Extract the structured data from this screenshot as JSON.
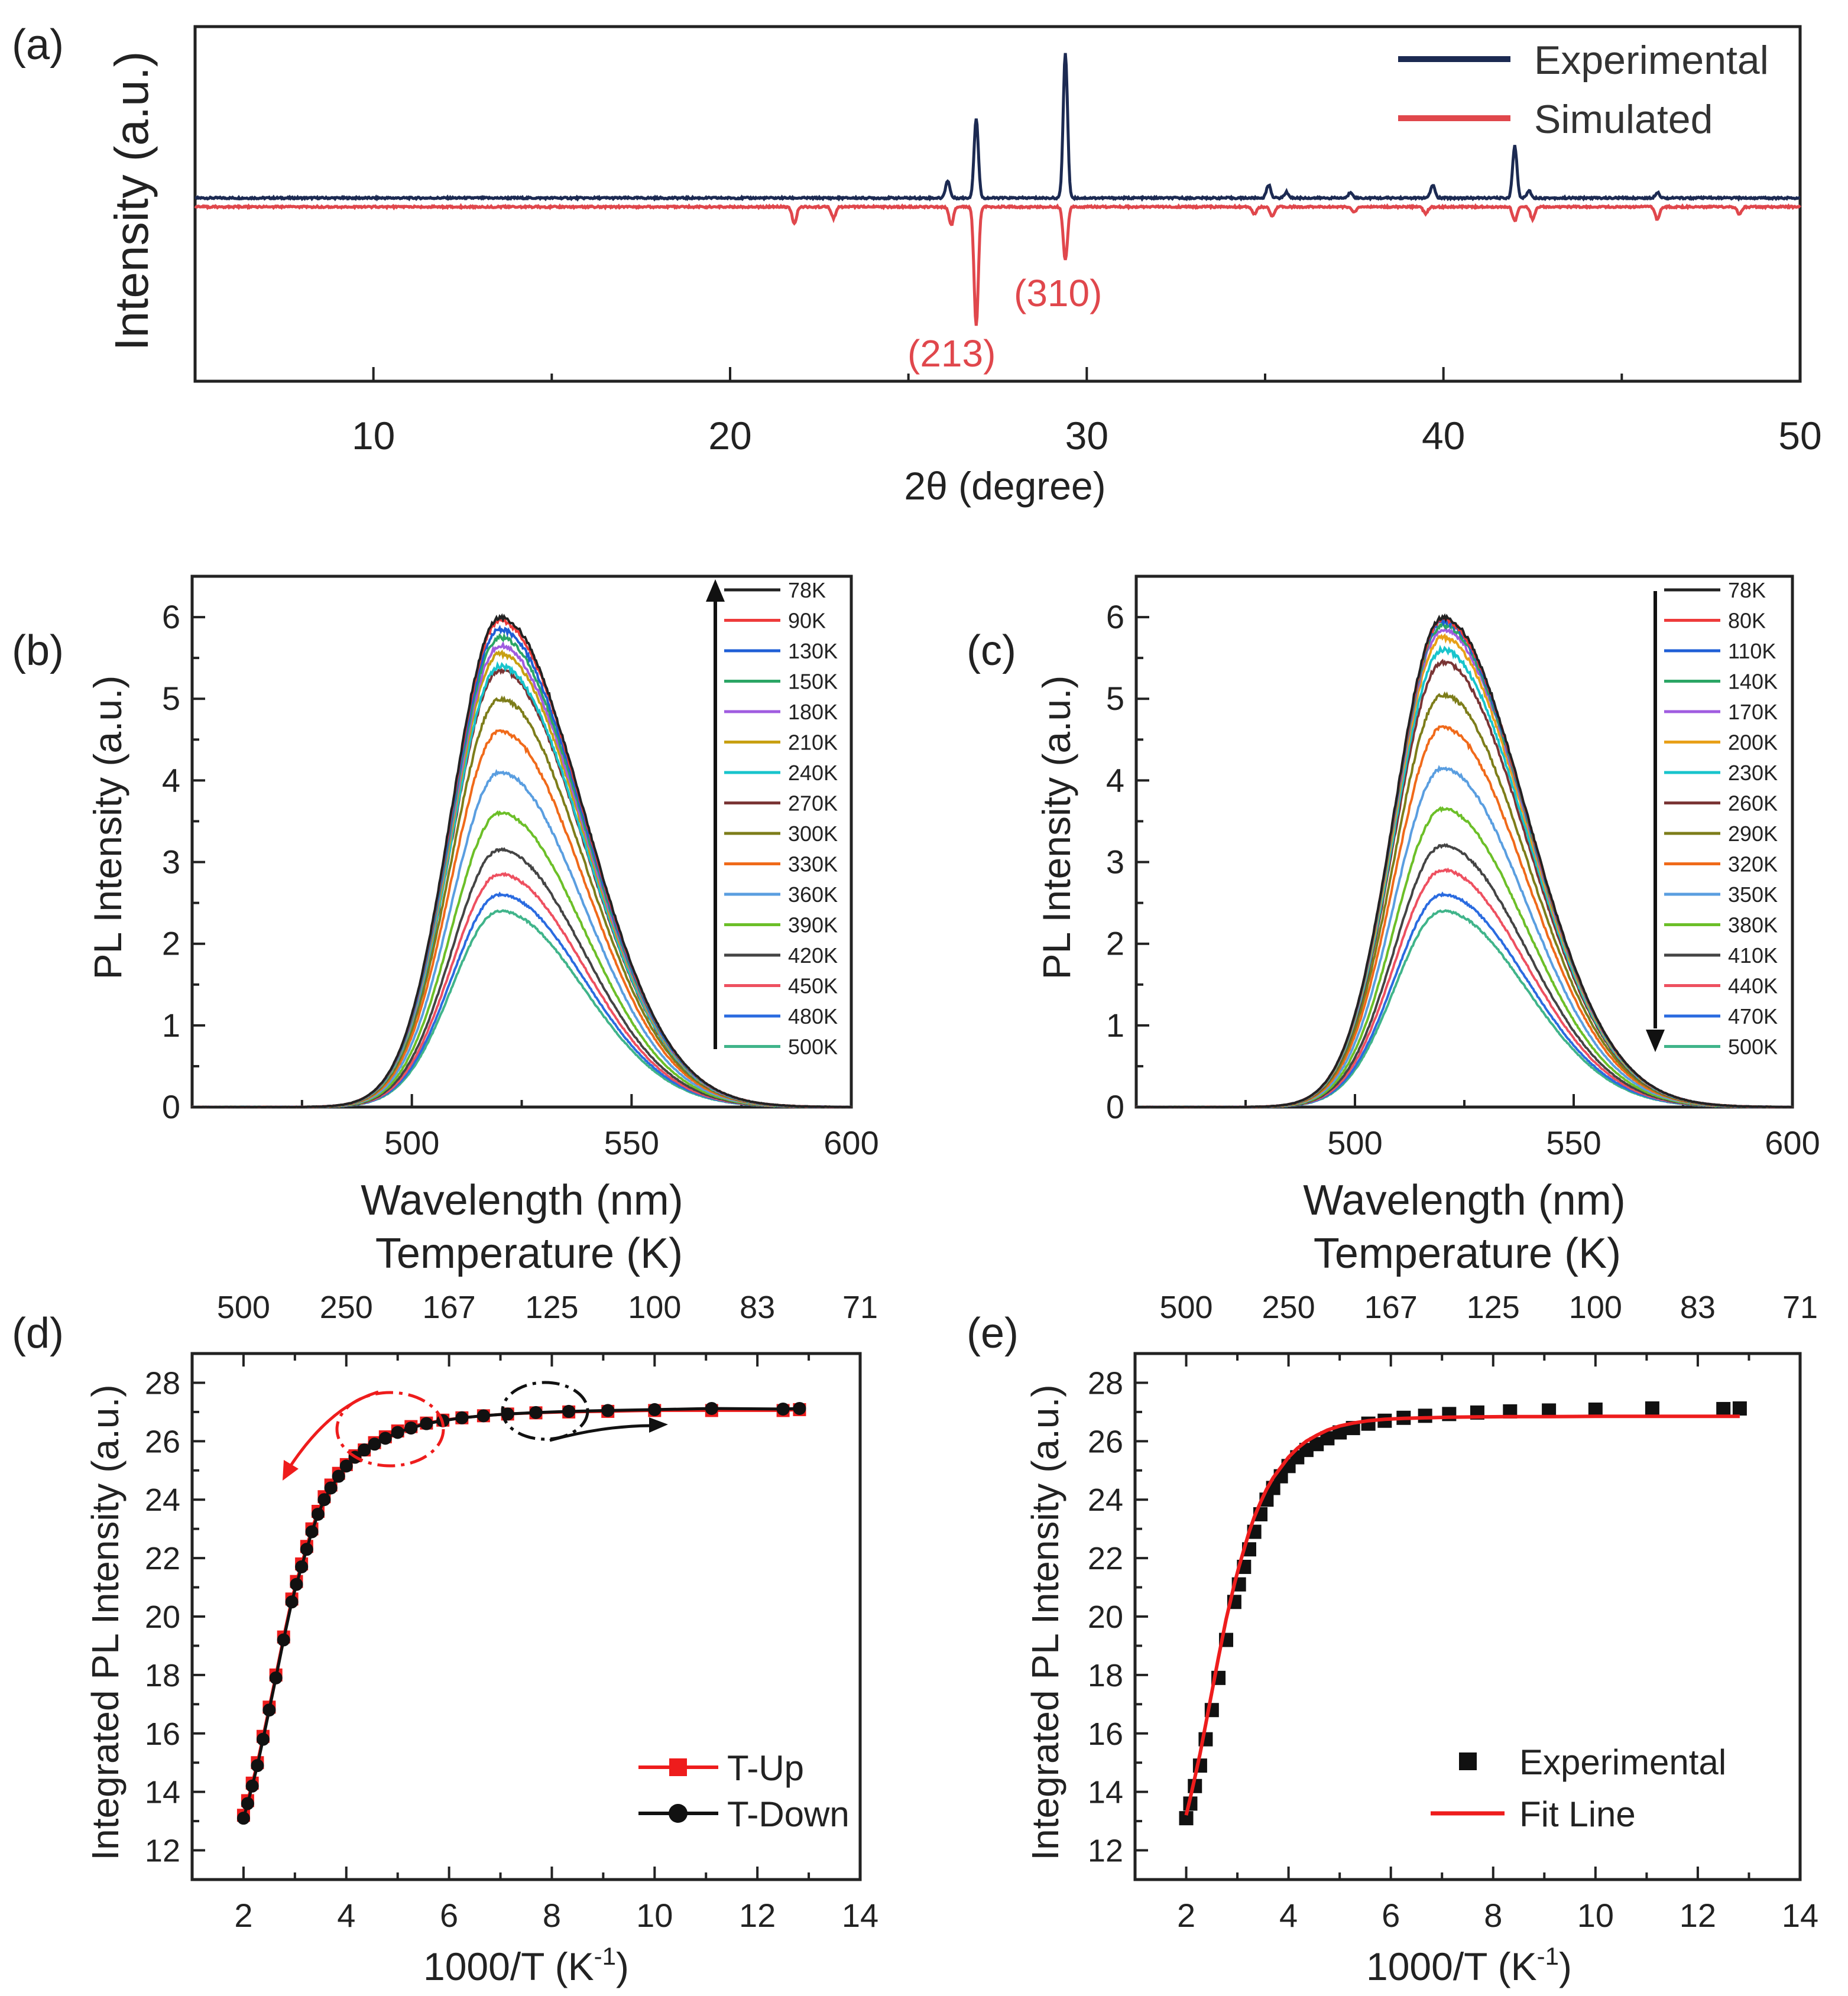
{
  "colors": {
    "experimental_xrd": "#1c2a52",
    "simulated_xrd": "#e0474c",
    "t_up": "#ee1c1c",
    "t_down": "#111111",
    "fit": "#ee1c1c",
    "experimental_marker": "#111111",
    "legend_temps": [
      "#222222",
      "#ee3b3b",
      "#1f5fd6",
      "#2ba665",
      "#a05ce0",
      "#c8a012",
      "#18c4cc",
      "#7a3535",
      "#7d7d1a",
      "#f06a1a",
      "#5a9ee0",
      "#6cbf28",
      "#444444",
      "#ee5060",
      "#2a6be0",
      "#40b48a"
    ],
    "legend_temps_c": [
      "#222222",
      "#ee3b3b",
      "#1f5fd6",
      "#2ba665",
      "#a05ce0",
      "#e8a018",
      "#18c4cc",
      "#7a3535",
      "#7d7d1a",
      "#f06a1a",
      "#5a9ee0",
      "#6cbf28",
      "#444444",
      "#ee5060",
      "#2a6be0",
      "#40b48a"
    ]
  },
  "chart_data": [
    {
      "panel": "(a)",
      "type": "line",
      "xlabel": "2θ (degree)",
      "ylabel": "Intensity (a.u.)",
      "xlim": [
        5,
        50
      ],
      "xticks": [
        10,
        20,
        30,
        40,
        50
      ],
      "legend": [
        "Experimental",
        "Simulated"
      ],
      "legend_position": "top-right",
      "series": [
        {
          "name": "Experimental",
          "peaks": [
            [
              26.1,
              0.12
            ],
            [
              26.9,
              0.55
            ],
            [
              29.4,
              1.0
            ],
            [
              35.1,
              0.09
            ],
            [
              35.6,
              0.04
            ],
            [
              37.4,
              0.04
            ],
            [
              39.7,
              0.09
            ],
            [
              42.0,
              0.36
            ],
            [
              42.4,
              0.05
            ],
            [
              46.0,
              0.04
            ]
          ]
        },
        {
          "name": "Simulated",
          "peaks": [
            [
              21.8,
              0.12
            ],
            [
              22.9,
              0.08
            ],
            [
              26.2,
              0.13
            ],
            [
              26.9,
              0.85
            ],
            [
              29.4,
              0.38
            ],
            [
              34.7,
              0.05
            ],
            [
              35.2,
              0.07
            ],
            [
              37.5,
              0.04
            ],
            [
              39.5,
              0.05
            ],
            [
              42.0,
              0.1
            ],
            [
              42.5,
              0.09
            ],
            [
              46.0,
              0.09
            ],
            [
              48.3,
              0.05
            ]
          ]
        }
      ],
      "annotations": [
        "(213)",
        "(310)"
      ]
    },
    {
      "panel": "(b)",
      "type": "line",
      "xlabel": "Wavelength (nm)",
      "ylabel": "PL Intensity (a.u.)",
      "xlim": [
        450,
        600
      ],
      "ylim": [
        0,
        6.5
      ],
      "xticks": [
        500,
        550,
        600
      ],
      "yticks": [
        0,
        1,
        2,
        3,
        4,
        5,
        6
      ],
      "peak_wavelength": 520,
      "legend": [
        "78K",
        "90K",
        "130K",
        "150K",
        "180K",
        "210K",
        "240K",
        "270K",
        "300K",
        "330K",
        "360K",
        "390K",
        "420K",
        "450K",
        "480K",
        "500K"
      ],
      "peak_values": [
        6.0,
        5.95,
        5.85,
        5.75,
        5.65,
        5.55,
        5.4,
        5.35,
        5.0,
        4.6,
        4.1,
        3.6,
        3.15,
        2.85,
        2.6,
        2.4
      ],
      "arrow": "up"
    },
    {
      "panel": "(c)",
      "type": "line",
      "xlabel": "Wavelength (nm)",
      "ylabel": "PL Intensity (a.u.)",
      "xlim": [
        450,
        600
      ],
      "ylim": [
        0,
        6.5
      ],
      "xticks": [
        500,
        550,
        600
      ],
      "yticks": [
        0,
        1,
        2,
        3,
        4,
        5,
        6
      ],
      "peak_wavelength": 520,
      "legend": [
        "78K",
        "80K",
        "110K",
        "140K",
        "170K",
        "200K",
        "230K",
        "260K",
        "290K",
        "320K",
        "350K",
        "380K",
        "410K",
        "440K",
        "470K",
        "500K"
      ],
      "peak_values": [
        6.0,
        5.97,
        5.95,
        5.9,
        5.85,
        5.75,
        5.6,
        5.45,
        5.05,
        4.65,
        4.15,
        3.65,
        3.2,
        2.9,
        2.6,
        2.4
      ],
      "arrow": "down"
    },
    {
      "panel": "(d)",
      "type": "scatter",
      "xlabel": "1000/T (K",
      "xlabel_sup": "-1",
      "xlabel_end": ")",
      "ylabel": "Integrated PL Intensity (a.u.)",
      "top_label": "Temperature (K)",
      "xlim": [
        1,
        14
      ],
      "ylim": [
        11,
        29
      ],
      "xticks": [
        2,
        4,
        6,
        8,
        10,
        12,
        14
      ],
      "yticks": [
        12,
        14,
        16,
        18,
        20,
        22,
        24,
        26,
        28
      ],
      "top_ticks": [
        "500",
        "250",
        "167",
        "125",
        "100",
        "83",
        "71"
      ],
      "legend": [
        "T-Up",
        "T-Down"
      ],
      "legend_position": "bottom-right",
      "x": [
        2.0,
        2.08,
        2.17,
        2.27,
        2.38,
        2.5,
        2.63,
        2.78,
        2.94,
        3.03,
        3.13,
        3.23,
        3.33,
        3.45,
        3.57,
        3.7,
        3.85,
        4.0,
        4.17,
        4.35,
        4.55,
        4.76,
        5.0,
        5.26,
        5.56,
        5.88,
        6.25,
        6.67,
        7.14,
        7.69,
        8.33,
        9.09,
        10.0,
        11.11,
        12.5,
        12.82
      ],
      "series": [
        {
          "name": "T-Up",
          "values": [
            13.2,
            13.7,
            14.3,
            15.0,
            15.9,
            16.9,
            18.0,
            19.3,
            20.6,
            21.2,
            21.8,
            22.4,
            23.0,
            23.6,
            24.1,
            24.5,
            24.9,
            25.2,
            25.5,
            25.7,
            25.95,
            26.15,
            26.35,
            26.5,
            26.62,
            26.72,
            26.8,
            26.87,
            26.93,
            26.97,
            27.0,
            27.02,
            27.05,
            27.05,
            27.05,
            27.08
          ]
        },
        {
          "name": "T-Down",
          "values": [
            13.1,
            13.6,
            14.2,
            14.9,
            15.8,
            16.8,
            17.9,
            19.2,
            20.5,
            21.1,
            21.7,
            22.3,
            22.9,
            23.5,
            24.0,
            24.4,
            24.8,
            25.15,
            25.45,
            25.7,
            25.9,
            26.1,
            26.3,
            26.45,
            26.6,
            26.7,
            26.8,
            26.87,
            26.93,
            26.98,
            27.02,
            27.05,
            27.08,
            27.12,
            27.1,
            27.12
          ]
        }
      ]
    },
    {
      "panel": "(e)",
      "type": "scatter",
      "xlabel": "1000/T (K",
      "xlabel_sup": "-1",
      "xlabel_end": ")",
      "ylabel": "Integrated PL Intensity (a.u.)",
      "top_label": "Temperature (K)",
      "xlim": [
        1,
        14
      ],
      "ylim": [
        11,
        29
      ],
      "xticks": [
        2,
        4,
        6,
        8,
        10,
        12,
        14
      ],
      "yticks": [
        12,
        14,
        16,
        18,
        20,
        22,
        24,
        26,
        28
      ],
      "top_ticks": [
        "500",
        "250",
        "167",
        "125",
        "100",
        "83",
        "71"
      ],
      "legend": [
        "Experimental",
        "Fit Line"
      ],
      "legend_position": "bottom-right",
      "x": [
        2.0,
        2.08,
        2.17,
        2.27,
        2.38,
        2.5,
        2.63,
        2.78,
        2.94,
        3.03,
        3.13,
        3.23,
        3.33,
        3.45,
        3.57,
        3.7,
        3.85,
        4.0,
        4.17,
        4.35,
        4.55,
        4.76,
        5.0,
        5.26,
        5.56,
        5.88,
        6.25,
        6.67,
        7.14,
        7.69,
        8.33,
        9.09,
        10.0,
        11.11,
        12.5,
        12.82
      ],
      "series": [
        {
          "name": "Experimental",
          "values": [
            13.1,
            13.6,
            14.2,
            14.9,
            15.8,
            16.8,
            17.9,
            19.2,
            20.5,
            21.1,
            21.7,
            22.3,
            22.9,
            23.5,
            24.0,
            24.4,
            24.8,
            25.15,
            25.45,
            25.7,
            25.9,
            26.1,
            26.3,
            26.45,
            26.6,
            26.7,
            26.8,
            26.87,
            26.93,
            26.98,
            27.02,
            27.05,
            27.08,
            27.12,
            27.1,
            27.12
          ]
        },
        {
          "name": "Fit Line",
          "values": [
            13.2,
            13.8,
            14.5,
            15.3,
            16.3,
            17.4,
            18.6,
            19.9,
            21.1,
            21.7,
            22.3,
            22.9,
            23.4,
            23.9,
            24.35,
            24.75,
            25.1,
            25.45,
            25.75,
            26.0,
            26.2,
            26.38,
            26.52,
            26.62,
            26.7,
            26.75,
            26.78,
            26.8,
            26.82,
            26.83,
            26.84,
            26.84,
            26.85,
            26.85,
            26.85,
            26.85
          ]
        }
      ]
    }
  ]
}
